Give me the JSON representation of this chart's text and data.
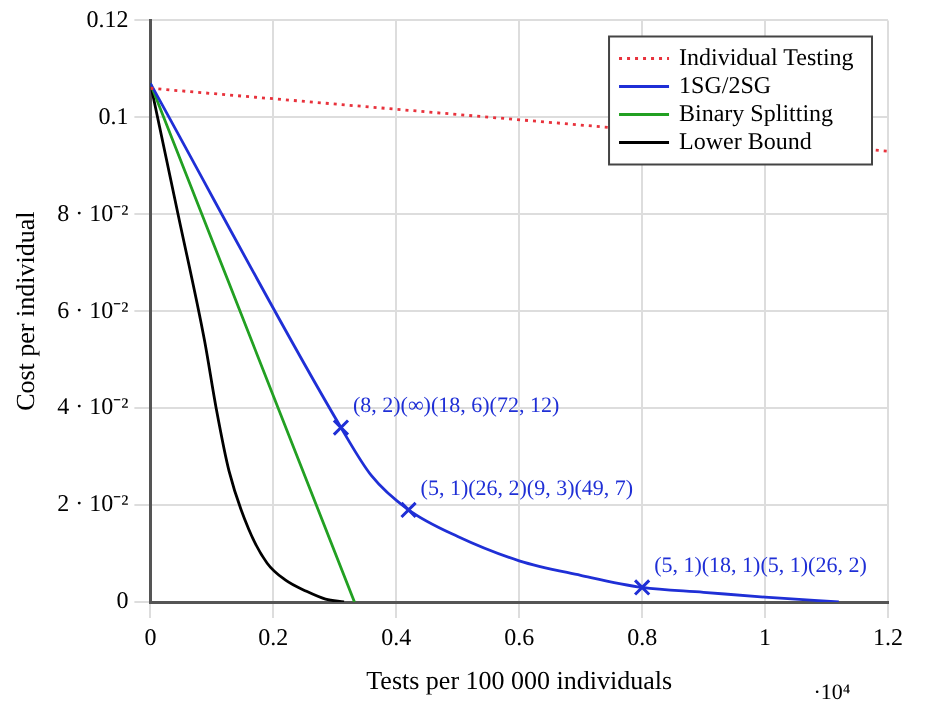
{
  "chart_data": {
    "type": "line",
    "xlabel": "Tests per 100 000 individuals",
    "ylabel": "Cost per individual",
    "xlim": [
      0,
      1.2
    ],
    "xticks": [
      0,
      0.2,
      0.4,
      0.6,
      0.8,
      1,
      1.2
    ],
    "ylim": [
      0,
      0.12
    ],
    "yticks": [
      0,
      {
        "value": 0.02,
        "label": "2 · 10⁻²"
      },
      {
        "value": 0.04,
        "label": "4 · 10⁻²"
      },
      {
        "value": 0.06,
        "label": "6 · 10⁻²"
      },
      {
        "value": 0.08,
        "label": "8 · 10⁻²"
      },
      0.1,
      0.12
    ],
    "grid": true,
    "legend": "top right",
    "marker": "none",
    "series": [
      {
        "name": "Individual Testing",
        "color": "#e8323c",
        "line_style": "dotted",
        "x": [
          0,
          1.2
        ],
        "values": [
          0.106,
          0.093
        ]
      },
      {
        "name": "1SG/2SG",
        "color": "#1f2fd6",
        "x": [
          0,
          0.31,
          0.36,
          0.42,
          0.5,
          0.6,
          0.7,
          0.8,
          0.9,
          1.0,
          1.12
        ],
        "values": [
          0.107,
          0.036,
          0.026,
          0.019,
          0.0135,
          0.0085,
          0.0055,
          0.003,
          0.002,
          0.001,
          0
        ]
      },
      {
        "name": "Binary Splitting",
        "color": "#22a022",
        "x": [
          0,
          0.332
        ],
        "values": [
          0.107,
          0
        ]
      },
      {
        "name": "Lower Bound",
        "color": "#000000",
        "x": [
          0,
          0.045,
          0.088,
          0.107,
          0.128,
          0.16,
          0.19,
          0.22,
          0.254,
          0.285,
          0.315
        ],
        "values": [
          0.107,
          0.08,
          0.054,
          0.04,
          0.027,
          0.015,
          0.008,
          0.0045,
          0.0022,
          0.0006,
          0
        ]
      },
      {
        "type": "scatter",
        "marker": "cross",
        "color": "#1f2fd6",
        "x": [
          0.31,
          0.42,
          0.8
        ],
        "values": [
          0.036,
          0.019,
          0.003
        ]
      }
    ],
    "annotations": [
      {
        "text": "(8, 2)(∞)(18, 6)(72, 12)",
        "x": 0.31,
        "y": 0.036
      },
      {
        "text": "(5, 1)(26, 2)(9, 3)(49, 7)",
        "x": 0.42,
        "y": 0.019
      },
      {
        "text": "(5, 1)(18, 1)(5, 1)(26, 2)",
        "x": 0.8,
        "y": 0.003
      },
      "·10⁴"
    ]
  }
}
